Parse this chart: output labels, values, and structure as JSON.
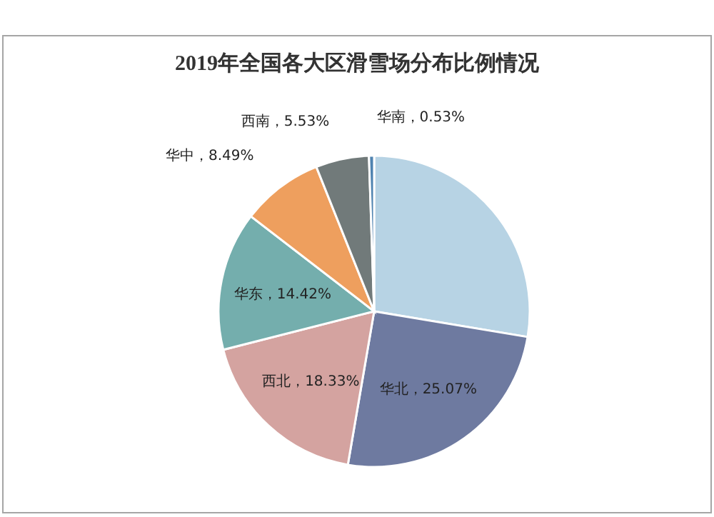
{
  "chart_data": {
    "type": "pie",
    "title": "2019年全国各大区滑雪场分布比例情况",
    "categories": [
      null,
      "华北",
      "西北",
      "华东",
      "华中",
      "西南",
      "华南"
    ],
    "values": [
      27.63,
      25.07,
      18.33,
      14.42,
      8.49,
      5.53,
      0.53
    ],
    "value_labels": [
      null,
      "25.07%",
      "18.33%",
      "14.42%",
      "8.49%",
      "5.53%",
      "0.53%"
    ],
    "colors": [
      "#b7d3e4",
      "#6e7aa0",
      "#d4a3a0",
      "#74aead",
      "#ee9f5e",
      "#717a7a",
      "#4f83b0"
    ]
  }
}
